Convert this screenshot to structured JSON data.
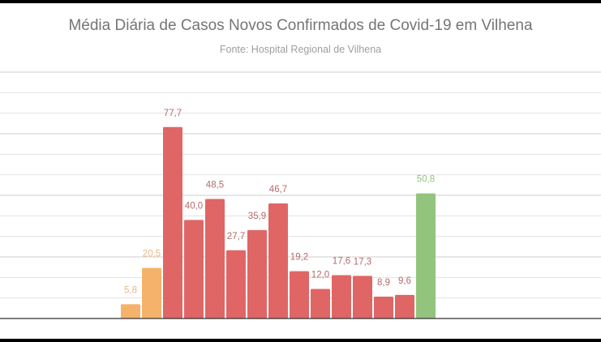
{
  "chart_data": {
    "type": "bar",
    "title": "Média Diária de Casos Novos Confirmados de Covid-19 em Vilhena",
    "subtitle": "Fonte: Hospital Regional de Vilhena",
    "xlabel": "",
    "ylabel": "",
    "ylim": [
      0,
      100
    ],
    "grid": true,
    "legend": "none",
    "values": [
      5.8,
      20.5,
      77.7,
      40.0,
      48.5,
      27.7,
      35.9,
      46.7,
      19.2,
      12.0,
      17.6,
      17.3,
      8.9,
      9.6,
      50.8
    ],
    "labels": [
      "5,8",
      "20,5",
      "77,7",
      "40,0",
      "48,5",
      "27,7",
      "35,9",
      "46,7",
      "19,2",
      "12,0",
      "17,6",
      "17,3",
      "8,9",
      "9,6",
      "50,8"
    ],
    "bar_colors": [
      "#f4b26b",
      "#f4b26b",
      "#e06666",
      "#e06666",
      "#e06666",
      "#e06666",
      "#e06666",
      "#e06666",
      "#e06666",
      "#e06666",
      "#e06666",
      "#e06666",
      "#e06666",
      "#e06666",
      "#93c47d"
    ],
    "label_colors": [
      "#e8b887",
      "#e8b887",
      "#b56a6a",
      "#b56a6a",
      "#b56a6a",
      "#b56a6a",
      "#b56a6a",
      "#b56a6a",
      "#b56a6a",
      "#b56a6a",
      "#b56a6a",
      "#b56a6a",
      "#b56a6a",
      "#b56a6a",
      "#93c47d"
    ]
  }
}
